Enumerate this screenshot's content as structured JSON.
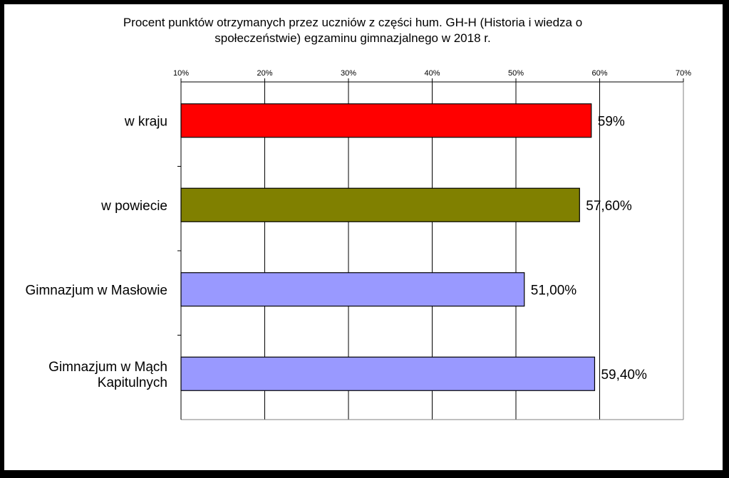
{
  "chart_data": {
    "type": "bar",
    "orientation": "horizontal",
    "title_lines": [
      "Procent punktów otrzymanych przez uczniów z części hum. GH-H (Historia i wiedza o",
      "społeczeństwie) egzaminu gimnazjalnego w 2018 r."
    ],
    "xlim": [
      10,
      70
    ],
    "tick_labels": [
      "10%",
      "20%",
      "30%",
      "40%",
      "50%",
      "60%",
      "70%"
    ],
    "tick_values": [
      10,
      20,
      30,
      40,
      50,
      60,
      70
    ],
    "axis_position": "top",
    "grid": true,
    "categories": [
      [
        "w kraju"
      ],
      [
        "w powiecie"
      ],
      [
        "Gimnazjum w Masłowie"
      ],
      [
        "Gimnazjum w Mąch",
        "Kapitulnych"
      ]
    ],
    "values": [
      59,
      57.6,
      51.0,
      59.4
    ],
    "value_labels": [
      "59%",
      "57,60%",
      "51,00%",
      "59,40%"
    ],
    "colors": [
      "#ff0000",
      "#808000",
      "#9999ff",
      "#9999ff"
    ]
  }
}
